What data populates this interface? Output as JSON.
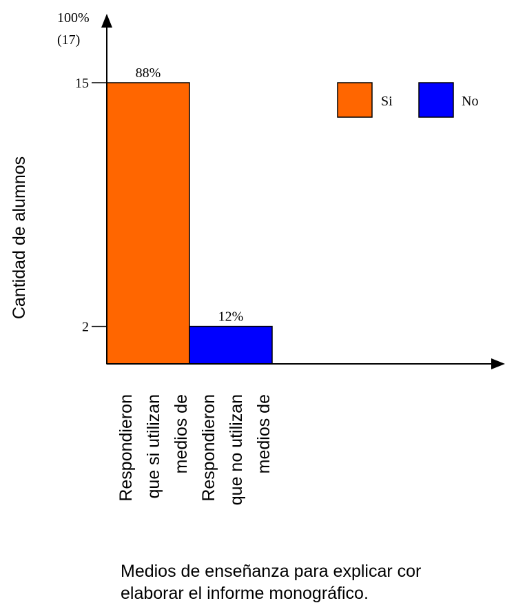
{
  "chart_data": {
    "type": "bar",
    "categories": [
      [
        "Respondieron",
        "que si utilizan",
        "medios de"
      ],
      [
        "Respondieron",
        "que no utilizan",
        "medios de"
      ]
    ],
    "values": [
      15,
      2
    ],
    "value_labels": [
      "88%",
      "12%"
    ],
    "ylabel": "Cantidad de alumnos",
    "xlabel": [
      "Medios de enseñanza para explicar cor",
      "elaborar el informe monográfico."
    ],
    "y_top_label": [
      "100%",
      "(17)"
    ],
    "yticks": [
      2,
      15
    ],
    "ylim": [
      0,
      17
    ],
    "legend": {
      "position": "top-right",
      "items": [
        {
          "name": "Si",
          "color": "#ff6600"
        },
        {
          "name": "No",
          "color": "#0000ff"
        }
      ]
    },
    "colors": [
      "#ff6600",
      "#0000ff"
    ],
    "grid": false
  }
}
